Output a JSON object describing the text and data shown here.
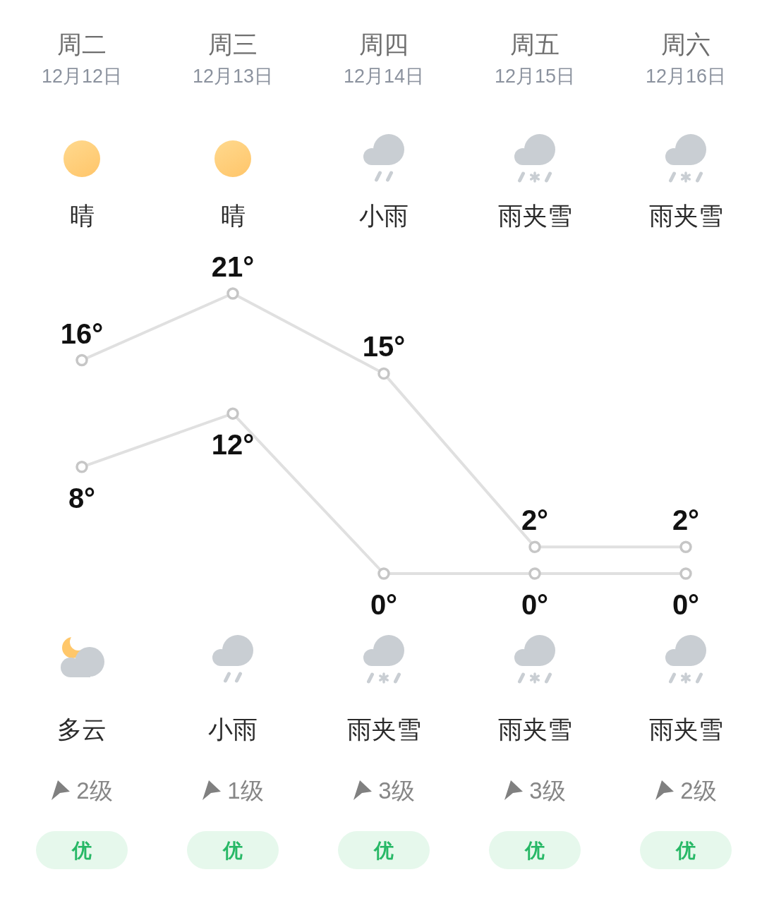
{
  "chart_data": {
    "type": "line",
    "categories": [
      "周二",
      "周三",
      "周四",
      "周五",
      "周六"
    ],
    "series": [
      {
        "color": "#e0e0e0",
        "values": [
          16,
          21,
          15,
          2,
          2
        ],
        "value_labels": [
          "16°",
          "21°",
          "15°",
          "2°",
          "2°"
        ]
      },
      {
        "color": "#e0e0e0",
        "values": [
          8,
          12,
          0,
          0,
          0
        ],
        "value_labels": [
          "8°",
          "12°",
          "0°",
          "0°",
          "0°"
        ]
      }
    ],
    "marker": "circle",
    "line_style": "solid",
    "annotations": [
      "12月12日",
      "12月13日",
      "12月14日",
      "12月15日",
      "12月16日",
      "晴",
      "晴",
      "小雨",
      "雨夹雪",
      "雨夹雪",
      "多云",
      "小雨",
      "雨夹雪",
      "雨夹雪",
      "雨夹雪",
      "2级",
      "1级",
      "3级",
      "3级",
      "2级",
      "优",
      "优",
      "优",
      "优",
      "优"
    ]
  }
}
